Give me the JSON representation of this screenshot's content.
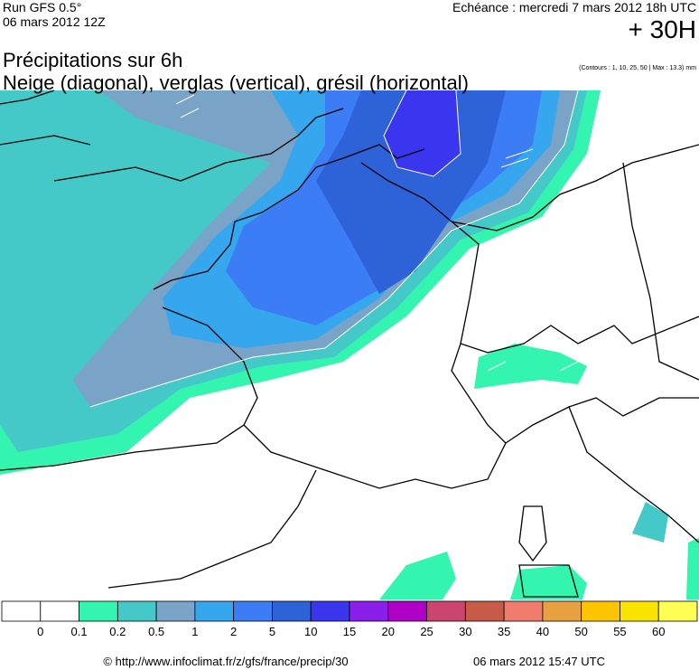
{
  "header": {
    "run": "Run GFS 0.5°",
    "run_date": "06 mars 2012 12Z",
    "forecast": "Echéance : mercredi 7 mars 2012 18h UTC",
    "lead": "+ 30H",
    "title": "Précipitations sur 6h",
    "subtitle": "Neige (diagonal), verglas (vertical), grésil (horizontal)",
    "contours": "(Contours : 1, 10, 25, 50 | Max : 13.3) mm"
  },
  "legend": {
    "colors": [
      "#ffffff",
      "#ffffff",
      "#33f5b0",
      "#44c8c8",
      "#7aa3c8",
      "#36a6ee",
      "#3c7cf4",
      "#2e62d8",
      "#3a36f0",
      "#8a1eea",
      "#b000c8",
      "#cc4470",
      "#c85a48",
      "#f07c6e",
      "#e8a040",
      "#ffc400",
      "#f8e400",
      "#ffff55"
    ],
    "labels": [
      "0",
      "0.1",
      "0.2",
      "0.5",
      "1",
      "2",
      "5",
      "10",
      "15",
      "20",
      "25",
      "30",
      "35",
      "40",
      "50",
      "55",
      "60"
    ]
  },
  "footer": {
    "url": "© http://www.infoclimat.fr/z/gfs/france/precip/30",
    "date": "06 mars 2012 15:47 UTC"
  }
}
